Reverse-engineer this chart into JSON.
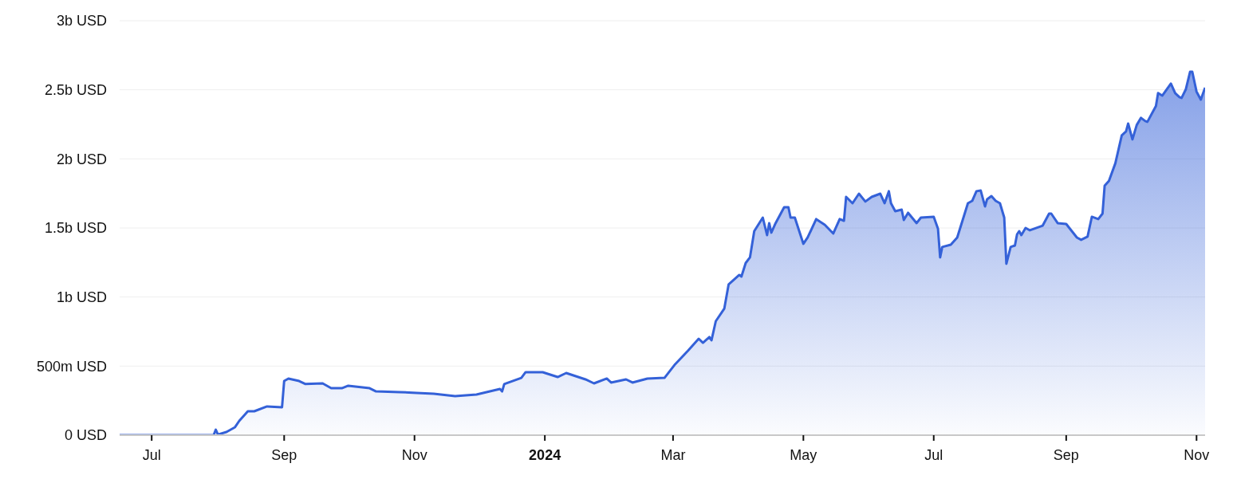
{
  "chart_data": {
    "type": "area",
    "xlim": [
      "2023-06-16",
      "2024-11-05"
    ],
    "xticks": [
      {
        "value": "2023-07-01",
        "label": "Jul"
      },
      {
        "value": "2023-09-01",
        "label": "Sep"
      },
      {
        "value": "2023-11-01",
        "label": "Nov"
      },
      {
        "value": "2024-01-01",
        "label": "2024"
      },
      {
        "value": "2024-03-01",
        "label": "Mar"
      },
      {
        "value": "2024-05-01",
        "label": "May"
      },
      {
        "value": "2024-07-01",
        "label": "Jul"
      },
      {
        "value": "2024-09-01",
        "label": "Sep"
      },
      {
        "value": "2024-11-01",
        "label": "Nov"
      }
    ],
    "ylim": [
      0,
      3000000000
    ],
    "yticks": [
      {
        "value": 0,
        "label": "0 USD"
      },
      {
        "value": 500000000,
        "label": "500m USD"
      },
      {
        "value": 1000000000,
        "label": "1b USD"
      },
      {
        "value": 1500000000,
        "label": "1.5b USD"
      },
      {
        "value": 2000000000,
        "label": "2b USD"
      },
      {
        "value": 2500000000,
        "label": "2.5b USD"
      },
      {
        "value": 3000000000,
        "label": "3b USD"
      }
    ],
    "grid": "y",
    "marker": "none",
    "line_style": "solid",
    "x": [
      "2023-06-16",
      "2023-07-30",
      "2023-07-31",
      "2023-08-01",
      "2023-08-05",
      "2023-08-09",
      "2023-08-11",
      "2023-08-15",
      "2023-08-18",
      "2023-08-24",
      "2023-08-31",
      "2023-09-01",
      "2023-09-03",
      "2023-09-08",
      "2023-09-11",
      "2023-09-19",
      "2023-09-23",
      "2023-09-28",
      "2023-10-01",
      "2023-10-11",
      "2023-10-14",
      "2023-10-25",
      "2023-11-02",
      "2023-11-10",
      "2023-11-20",
      "2023-11-30",
      "2023-12-11",
      "2023-12-12",
      "2023-12-13",
      "2023-12-21",
      "2023-12-23",
      "2023-12-31",
      "2024-01-07",
      "2024-01-11",
      "2024-01-20",
      "2024-01-24",
      "2024-01-30",
      "2024-02-01",
      "2024-02-08",
      "2024-02-11",
      "2024-02-18",
      "2024-02-26",
      "2024-03-02",
      "2024-03-08",
      "2024-03-13",
      "2024-03-15",
      "2024-03-18",
      "2024-03-19",
      "2024-03-21",
      "2024-03-25",
      "2024-03-27",
      "2024-04-01",
      "2024-04-02",
      "2024-04-04",
      "2024-04-06",
      "2024-04-08",
      "2024-04-12",
      "2024-04-14",
      "2024-04-15",
      "2024-04-16",
      "2024-04-18",
      "2024-04-22",
      "2024-04-24",
      "2024-04-25",
      "2024-04-27",
      "2024-05-01",
      "2024-05-03",
      "2024-05-07",
      "2024-05-11",
      "2024-05-15",
      "2024-05-18",
      "2024-05-20",
      "2024-05-21",
      "2024-05-24",
      "2024-05-27",
      "2024-05-30",
      "2024-06-02",
      "2024-06-06",
      "2024-06-08",
      "2024-06-10",
      "2024-06-11",
      "2024-06-13",
      "2024-06-16",
      "2024-06-17",
      "2024-06-19",
      "2024-06-23",
      "2024-06-25",
      "2024-07-01",
      "2024-07-03",
      "2024-07-04",
      "2024-07-05",
      "2024-07-09",
      "2024-07-12",
      "2024-07-17",
      "2024-07-19",
      "2024-07-21",
      "2024-07-23",
      "2024-07-25",
      "2024-07-26",
      "2024-07-28",
      "2024-07-30",
      "2024-08-01",
      "2024-08-03",
      "2024-08-04",
      "2024-08-06",
      "2024-08-08",
      "2024-08-09",
      "2024-08-10",
      "2024-08-11",
      "2024-08-13",
      "2024-08-15",
      "2024-08-21",
      "2024-08-24",
      "2024-08-25",
      "2024-08-28",
      "2024-09-01",
      "2024-09-06",
      "2024-09-08",
      "2024-09-11",
      "2024-09-13",
      "2024-09-16",
      "2024-09-18",
      "2024-09-19",
      "2024-09-21",
      "2024-09-24",
      "2024-09-27",
      "2024-09-29",
      "2024-09-30",
      "2024-10-02",
      "2024-10-04",
      "2024-10-06",
      "2024-10-08",
      "2024-10-09",
      "2024-10-13",
      "2024-10-14",
      "2024-10-16",
      "2024-10-20",
      "2024-10-22",
      "2024-10-24",
      "2024-10-25",
      "2024-10-27",
      "2024-10-29",
      "2024-10-30",
      "2024-11-01",
      "2024-11-03",
      "2024-11-05"
    ],
    "series": [
      {
        "color": "#3461d8",
        "values": [
          0,
          0,
          40000000,
          5000000,
          23000000,
          58000000,
          104000000,
          173000000,
          173000000,
          208000000,
          202000000,
          392000000,
          410000000,
          392000000,
          370000000,
          375000000,
          340000000,
          340000000,
          358000000,
          340000000,
          317000000,
          312000000,
          306000000,
          300000000,
          283000000,
          294000000,
          335000000,
          317000000,
          370000000,
          415000000,
          456000000,
          456000000,
          421000000,
          450000000,
          404000000,
          375000000,
          410000000,
          381000000,
          404000000,
          381000000,
          410000000,
          415000000,
          514000000,
          612000000,
          698000000,
          669000000,
          710000000,
          687000000,
          825000000,
          917000000,
          1091000000,
          1160000000,
          1148000000,
          1246000000,
          1287000000,
          1477000000,
          1575000000,
          1448000000,
          1535000000,
          1466000000,
          1535000000,
          1650000000,
          1650000000,
          1575000000,
          1575000000,
          1385000000,
          1431000000,
          1564000000,
          1523000000,
          1460000000,
          1564000000,
          1552000000,
          1725000000,
          1679000000,
          1748000000,
          1691000000,
          1725000000,
          1748000000,
          1679000000,
          1766000000,
          1679000000,
          1621000000,
          1633000000,
          1558000000,
          1610000000,
          1535000000,
          1575000000,
          1581000000,
          1494000000,
          1287000000,
          1362000000,
          1379000000,
          1431000000,
          1679000000,
          1696000000,
          1766000000,
          1771000000,
          1656000000,
          1708000000,
          1731000000,
          1696000000,
          1679000000,
          1575000000,
          1241000000,
          1362000000,
          1373000000,
          1454000000,
          1477000000,
          1448000000,
          1500000000,
          1483000000,
          1517000000,
          1604000000,
          1604000000,
          1535000000,
          1529000000,
          1431000000,
          1414000000,
          1437000000,
          1581000000,
          1564000000,
          1604000000,
          1806000000,
          1841000000,
          1968000000,
          2170000000,
          2199000000,
          2256000000,
          2141000000,
          2245000000,
          2297000000,
          2274000000,
          2268000000,
          2383000000,
          2476000000,
          2458000000,
          2545000000,
          2476000000,
          2447000000,
          2441000000,
          2504000000,
          2631000000,
          2631000000,
          2487000000,
          2429000000,
          2516000000
        ]
      }
    ]
  }
}
